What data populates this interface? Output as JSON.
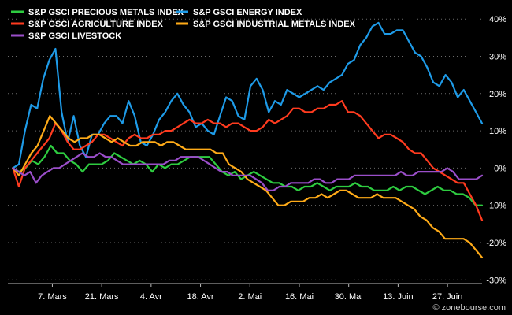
{
  "chart_data": {
    "type": "line",
    "title": "",
    "xlabel": "",
    "ylabel": "",
    "ylim": [
      -30,
      43
    ],
    "y_ticks": [
      40,
      30,
      20,
      10,
      0,
      -10,
      -20,
      -30
    ],
    "y_tick_labels": [
      "40%",
      "30%",
      "20%",
      "10%",
      "0%",
      "-10%",
      "-20%",
      "-30%"
    ],
    "x_ticks": [
      {
        "label": "7. Mars",
        "pos": 9
      },
      {
        "label": "21. Mars",
        "pos": 19
      },
      {
        "label": "4. Avr",
        "pos": 29
      },
      {
        "label": "18. Avr",
        "pos": 39
      },
      {
        "label": "2. Mai",
        "pos": 49
      },
      {
        "label": "16. Mai",
        "pos": 59
      },
      {
        "label": "30. Mai",
        "pos": 69
      },
      {
        "label": "13. Juin",
        "pos": 79
      },
      {
        "label": "27. Juin",
        "pos": 89
      }
    ],
    "grid": "horizontal-dotted",
    "legend_position": "top-left",
    "watermark": "© zonebourse.com",
    "series": [
      {
        "name": "S&P GSCI PRECIOUS METALS INDEX",
        "color": "#2ecc40",
        "values": [
          0,
          -1,
          0,
          2,
          1,
          3,
          6,
          4,
          4,
          2,
          1,
          -1,
          1,
          1,
          1,
          2,
          4,
          3,
          2,
          1,
          2,
          1,
          -1,
          1,
          0,
          1,
          1,
          2,
          3,
          3,
          3,
          3,
          1,
          -1,
          -2,
          -1,
          -3,
          -2,
          -1,
          -2,
          -3,
          -4,
          -4,
          -5,
          -5,
          -6,
          -5,
          -5,
          -4,
          -5,
          -6,
          -5,
          -5,
          -5,
          -4,
          -5,
          -5,
          -6,
          -6,
          -6,
          -5,
          -6,
          -5,
          -5,
          -6,
          -7,
          -6,
          -5,
          -6,
          -6,
          -7,
          -7,
          -8,
          -10,
          -10
        ]
      },
      {
        "name": "S&P GSCI ENERGY INDEX",
        "color": "#1e9be8",
        "values": [
          0,
          1,
          10,
          17,
          16,
          24,
          29,
          32,
          15,
          7,
          14,
          6,
          3,
          9,
          9,
          12,
          14,
          14,
          12,
          18,
          14,
          7,
          6,
          9,
          13,
          15,
          18,
          20,
          17,
          15,
          11,
          12,
          10,
          9,
          14,
          19,
          18,
          14,
          13,
          22,
          24,
          21,
          15,
          18,
          17,
          21,
          20,
          19,
          20,
          21,
          22,
          21,
          23,
          24,
          25,
          28,
          29,
          33,
          35,
          38,
          39,
          36,
          36,
          37,
          37,
          34,
          31,
          30,
          27,
          23,
          22,
          25,
          23,
          19,
          21,
          18,
          15,
          12
        ]
      },
      {
        "name": "S&P GSCI AGRICULTURE INDEX",
        "color": "#ff3b1f",
        "values": [
          0,
          -5,
          0,
          2,
          4,
          6,
          8,
          12,
          10,
          7,
          5,
          5,
          6,
          7,
          9,
          9,
          8,
          7,
          6,
          8,
          9,
          8,
          8,
          9,
          9,
          10,
          10,
          11,
          12,
          13,
          12,
          12,
          13,
          12,
          12,
          11,
          12,
          12,
          11,
          10,
          10,
          11,
          13,
          12,
          13,
          14,
          16,
          16,
          15,
          15,
          16,
          16,
          17,
          17,
          18,
          15,
          15,
          14,
          12,
          10,
          8,
          9,
          9,
          8,
          7,
          5,
          4,
          4,
          2,
          0,
          -1,
          -2,
          -3,
          -4,
          -4,
          -7,
          -10,
          -14
        ]
      },
      {
        "name": "S&P GSCI INDUSTRIAL METALS INDEX",
        "color": "#ffab18",
        "values": [
          0,
          -2,
          1,
          4,
          6,
          10,
          14,
          12,
          10,
          8,
          7,
          8,
          8,
          9,
          9,
          8,
          7,
          8,
          7,
          6,
          6,
          7,
          7,
          7,
          6,
          7,
          7,
          6,
          5,
          5,
          5,
          5,
          5,
          4,
          4,
          1,
          0,
          -1,
          -3,
          -4,
          -5,
          -6,
          -8,
          -10,
          -10,
          -9,
          -9,
          -9,
          -8,
          -8,
          -7,
          -8,
          -7,
          -6,
          -6,
          -7,
          -8,
          -8,
          -8,
          -7,
          -8,
          -8,
          -8,
          -9,
          -10,
          -11,
          -13,
          -14,
          -16,
          -17,
          -19,
          -19,
          -19,
          -19,
          -20,
          -22,
          -24
        ]
      },
      {
        "name": "S&P GSCI LIVESTOCK",
        "color": "#9a4ec9",
        "values": [
          0,
          -1,
          -2,
          -1,
          -4,
          -2,
          -1,
          0,
          0,
          1,
          2,
          3,
          4,
          3,
          3,
          4,
          3,
          3,
          2,
          1,
          1,
          1,
          1,
          1,
          1,
          1,
          1,
          2,
          2,
          3,
          3,
          3,
          3,
          2,
          1,
          0,
          -1,
          -1,
          -2,
          -2,
          -2,
          -2,
          -3,
          -4,
          -6,
          -6,
          -5,
          -5,
          -4,
          -4,
          -4,
          -4,
          -3,
          -3,
          -4,
          -4,
          -3,
          -3,
          -3,
          -2,
          -2,
          -2,
          -2,
          -2,
          -2,
          -2,
          -2,
          -1,
          -2,
          -2,
          -1,
          -1,
          -1,
          -1,
          -1,
          0,
          -1,
          -3,
          -3,
          -3,
          -3,
          -2
        ]
      }
    ]
  }
}
